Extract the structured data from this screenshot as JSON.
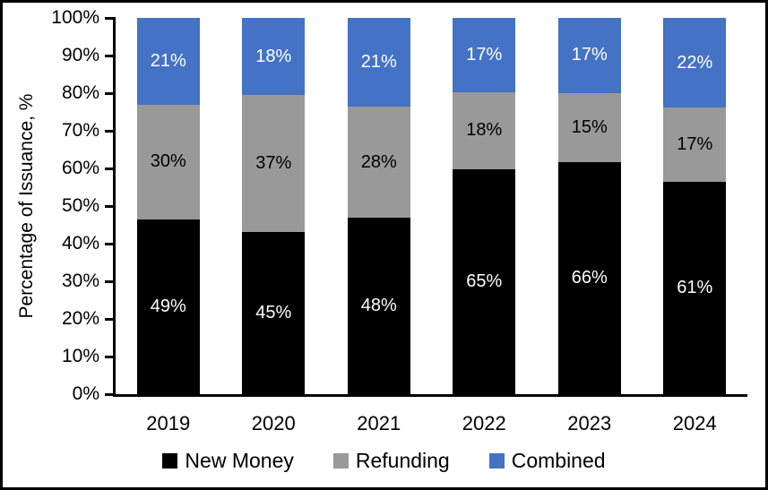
{
  "figure": {
    "background": "#ffffff",
    "frame_color": "#000000"
  },
  "chart_data": {
    "type": "bar",
    "variant": "stacked-100-percent",
    "title": "",
    "xlabel": "",
    "ylabel": "Percentage of Issuance, %",
    "grid": false,
    "categories": [
      "2019",
      "2020",
      "2021",
      "2022",
      "2023",
      "2024"
    ],
    "series": [
      {
        "name": "New Money",
        "color": "#000000",
        "label_color": "#ffffff",
        "values": [
          49,
          45,
          48,
          65,
          66,
          61
        ],
        "labels": [
          "49%",
          "45%",
          "48%",
          "65%",
          "66%",
          "61%"
        ]
      },
      {
        "name": "Refunding",
        "color": "#999999",
        "label_color": "#000000",
        "values": [
          30,
          37,
          28,
          18,
          15,
          17
        ],
        "labels": [
          "30%",
          "37%",
          "28%",
          "18%",
          "15%",
          "17%"
        ]
      },
      {
        "name": "Combined",
        "color": "#4472C4",
        "label_color": "#ffffff",
        "values": [
          21,
          18,
          21,
          17,
          17,
          22
        ],
        "labels": [
          "21%",
          "18%",
          "21%",
          "17%",
          "17%",
          "22%"
        ]
      }
    ],
    "y_axis": {
      "min": 0,
      "max": 100,
      "step": 10,
      "tick_labels": [
        "0%",
        "10%",
        "20%",
        "30%",
        "40%",
        "50%",
        "60%",
        "70%",
        "80%",
        "90%",
        "100%"
      ]
    },
    "legend": {
      "position": "bottom",
      "entries": [
        "New Money",
        "Refunding",
        "Combined"
      ]
    }
  }
}
